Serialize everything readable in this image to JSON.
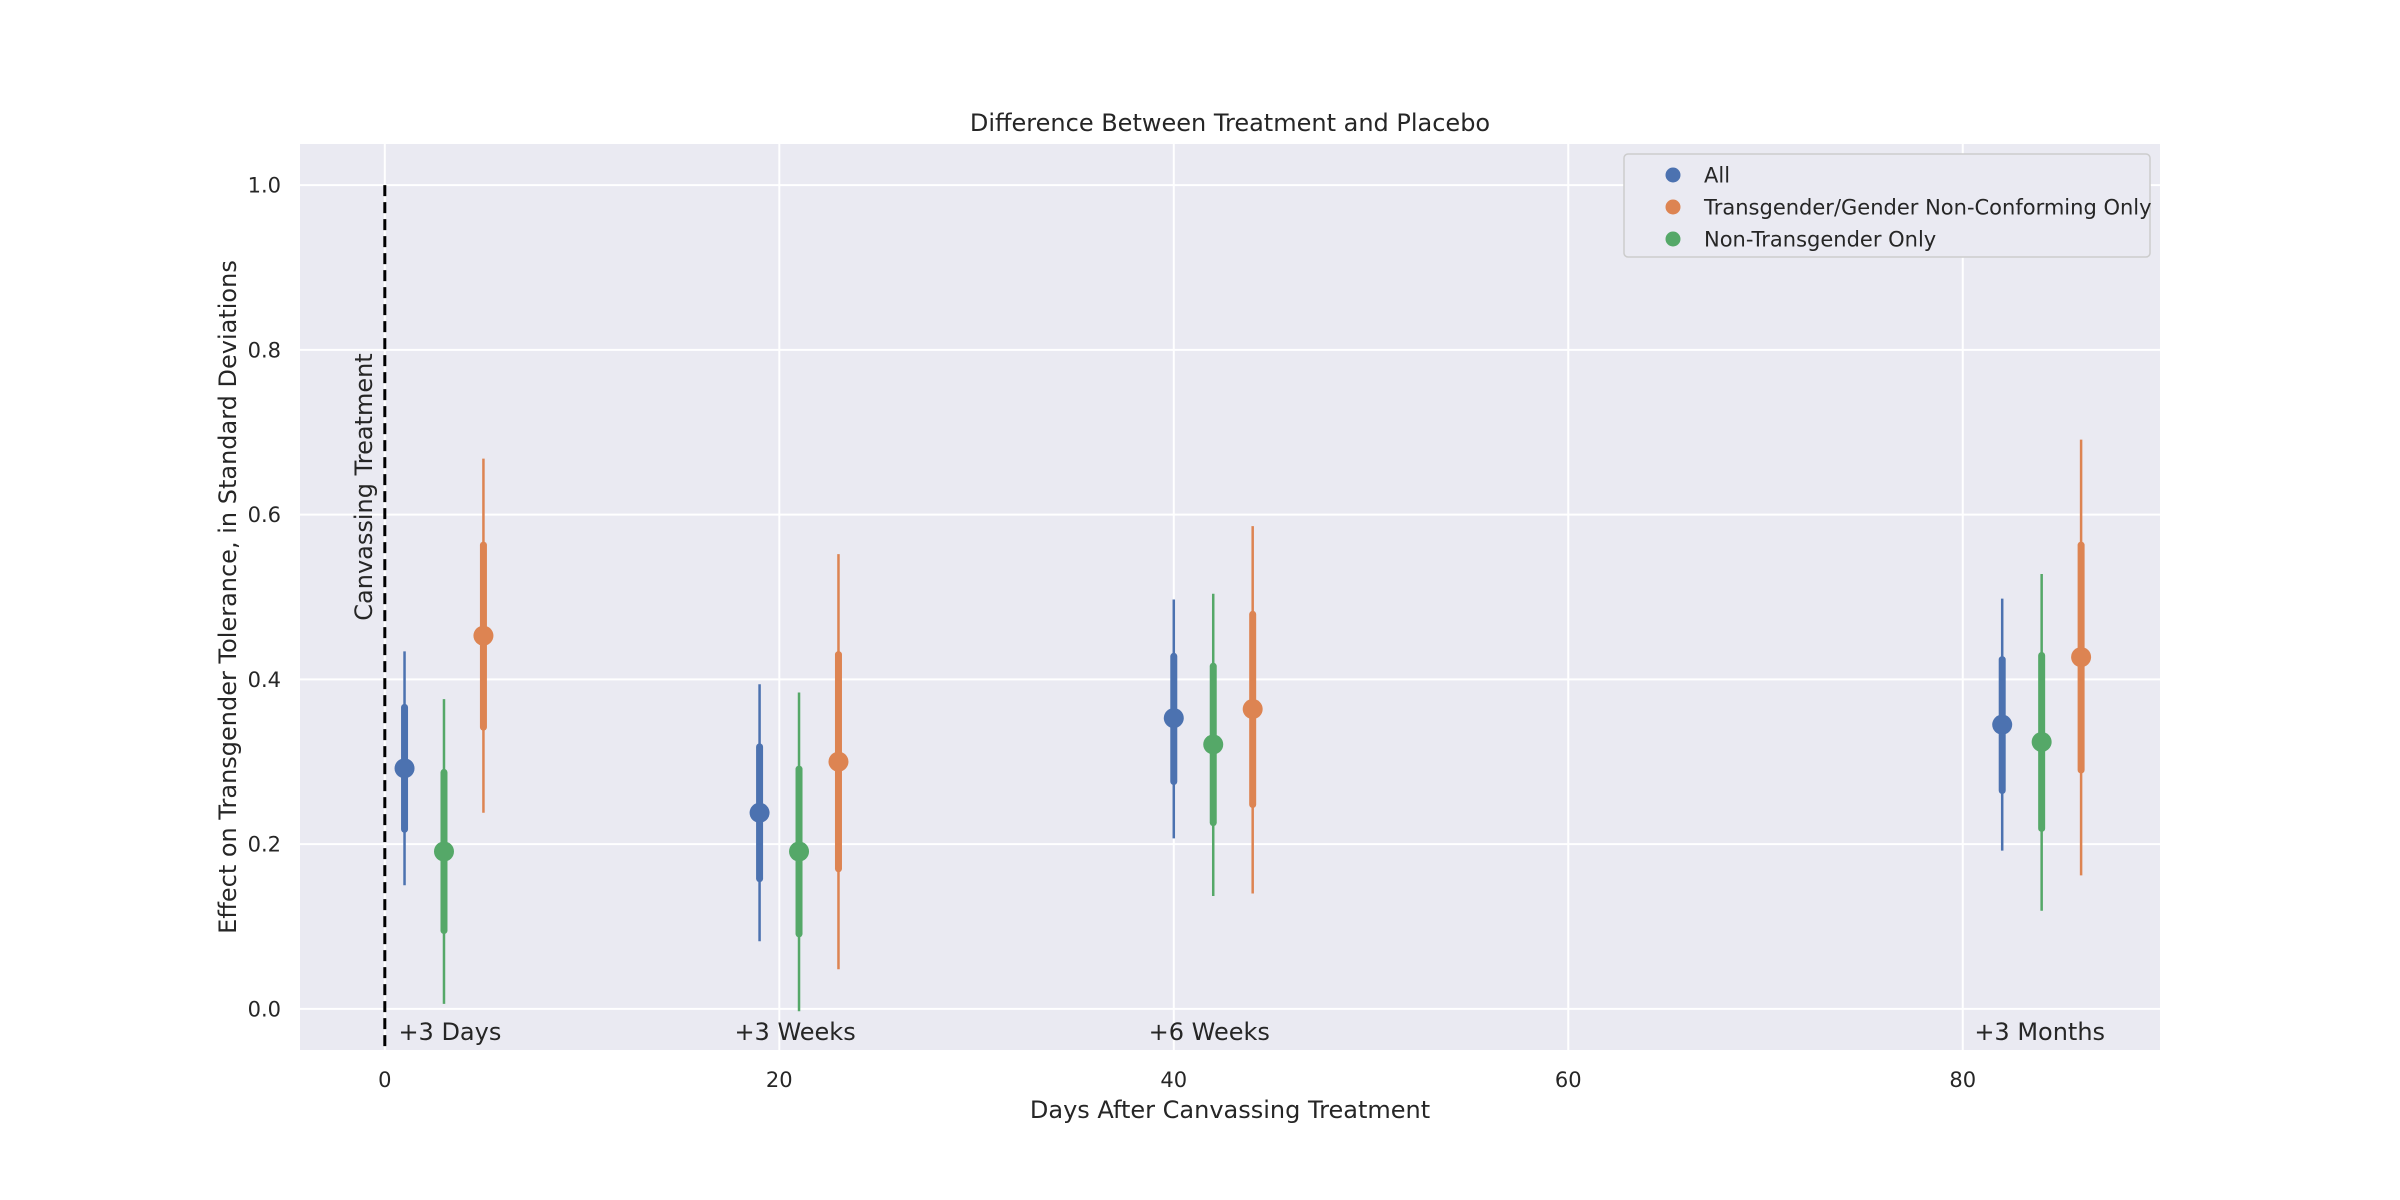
{
  "chart_data": {
    "type": "scatter",
    "subtype": "point-estimate with confidence intervals",
    "title": "Difference Between Treatment and Placebo",
    "xlabel": "Days After Canvassing Treatment",
    "ylabel": "Effect on Transgender Tolerance, in Standard Deviations",
    "xlim": [
      -4.3,
      90
    ],
    "ylim": [
      -0.05,
      1.05
    ],
    "xticks": [
      0,
      20,
      40,
      60,
      80
    ],
    "yticks": [
      0.0,
      0.2,
      0.4,
      0.6,
      0.8,
      1.0
    ],
    "grid": true,
    "legend_position": "top-right",
    "reference_line": {
      "x": 0,
      "label": "Canvassing Treatment",
      "style": "dashed"
    },
    "period_labels": [
      {
        "x": 3.3,
        "text": "+3 Days"
      },
      {
        "x": 20.8,
        "text": "+3 Weeks"
      },
      {
        "x": 41.8,
        "text": "+6 Weeks"
      },
      {
        "x": 83.9,
        "text": "+3 Months"
      }
    ],
    "series": [
      {
        "name": "All",
        "color": "#4c72b0",
        "points": [
          {
            "x": 1,
            "y": 0.292,
            "ci_inner": [
              0.218,
              0.366
            ],
            "ci_outer": [
              0.15,
              0.434
            ]
          },
          {
            "x": 19,
            "y": 0.238,
            "ci_inner": [
              0.158,
              0.318
            ],
            "ci_outer": [
              0.082,
              0.394
            ]
          },
          {
            "x": 40,
            "y": 0.353,
            "ci_inner": [
              0.276,
              0.428
            ],
            "ci_outer": [
              0.207,
              0.497
            ]
          },
          {
            "x": 82,
            "y": 0.345,
            "ci_inner": [
              0.265,
              0.424
            ],
            "ci_outer": [
              0.192,
              0.498
            ]
          }
        ]
      },
      {
        "name": "Transgender/Gender Non-Conforming Only",
        "color": "#dd8452",
        "points": [
          {
            "x": 5,
            "y": 0.453,
            "ci_inner": [
              0.342,
              0.563
            ],
            "ci_outer": [
              0.238,
              0.668
            ]
          },
          {
            "x": 23,
            "y": 0.3,
            "ci_inner": [
              0.17,
              0.43
            ],
            "ci_outer": [
              0.048,
              0.552
            ]
          },
          {
            "x": 44,
            "y": 0.364,
            "ci_inner": [
              0.248,
              0.479
            ],
            "ci_outer": [
              0.14,
              0.586
            ]
          },
          {
            "x": 86,
            "y": 0.427,
            "ci_inner": [
              0.29,
              0.563
            ],
            "ci_outer": [
              0.162,
              0.691
            ]
          }
        ]
      },
      {
        "name": "Non-Transgender Only",
        "color": "#55a868",
        "points": [
          {
            "x": 3,
            "y": 0.191,
            "ci_inner": [
              0.095,
              0.287
            ],
            "ci_outer": [
              0.006,
              0.376
            ]
          },
          {
            "x": 21,
            "y": 0.191,
            "ci_inner": [
              0.091,
              0.291
            ],
            "ci_outer": [
              -0.003,
              0.384
            ]
          },
          {
            "x": 42,
            "y": 0.321,
            "ci_inner": [
              0.226,
              0.416
            ],
            "ci_outer": [
              0.137,
              0.504
            ]
          },
          {
            "x": 84,
            "y": 0.324,
            "ci_inner": [
              0.219,
              0.429
            ],
            "ci_outer": [
              0.119,
              0.528
            ]
          }
        ]
      }
    ]
  }
}
